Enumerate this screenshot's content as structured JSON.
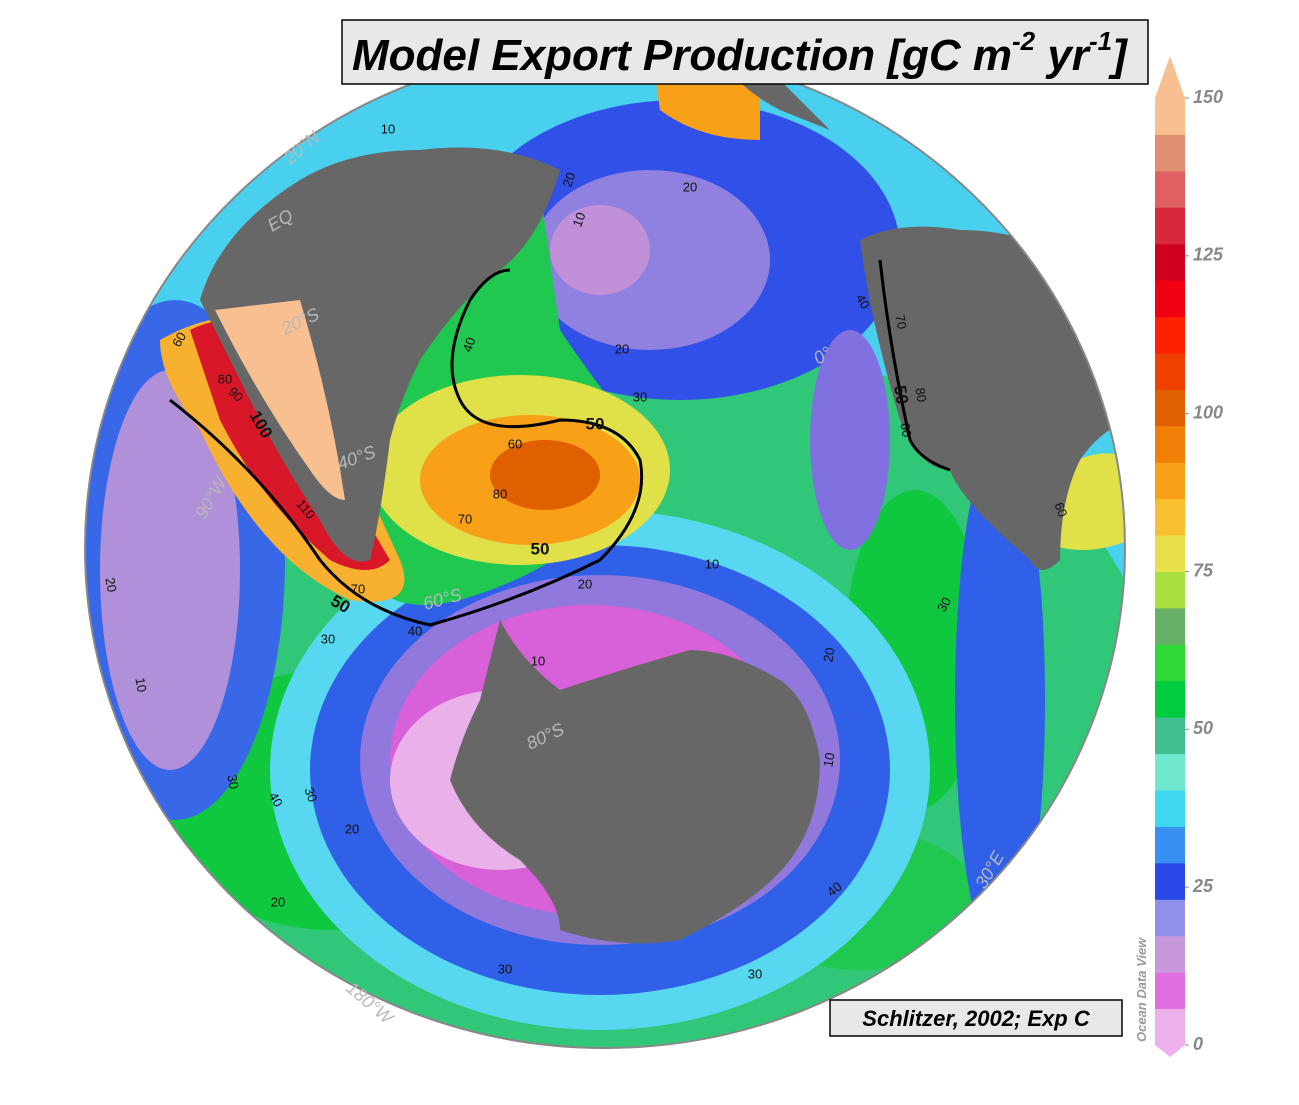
{
  "title": {
    "main": "Model Export Production [gC m",
    "sup1": "-2",
    "mid": " yr",
    "sup2": "-1",
    "end": "]"
  },
  "colorbar": {
    "range": [
      0,
      150
    ],
    "ticks": [
      0,
      25,
      50,
      75,
      100,
      125,
      150
    ],
    "colors": [
      "#eeb0ec",
      "#e070e0",
      "#c898dc",
      "#9090e8",
      "#2848e8",
      "#3890f0",
      "#40d8f0",
      "#70e8d0",
      "#40c090",
      "#00cc40",
      "#30d838",
      "#68b068",
      "#a8e040",
      "#e8e048",
      "#f8c030",
      "#f8a018",
      "#f08008",
      "#e06000",
      "#f04000",
      "#ff2000",
      "#f00010",
      "#d00020",
      "#d82840",
      "#e06060",
      "#e09070",
      "#f8c090"
    ],
    "label": "Ocean Data View"
  },
  "credit": "Schlitzer, 2002; Exp C",
  "graticule_labels": [
    "20°N",
    "EQ",
    "20°S",
    "40°S",
    "60°S",
    "80°S",
    "0°",
    "30°E",
    "90°W",
    "180°W"
  ],
  "contour_labels": [
    "10",
    "20",
    "20",
    "10",
    "20",
    "30",
    "40",
    "50",
    "60",
    "70",
    "80",
    "50",
    "60",
    "70",
    "80",
    "90",
    "100",
    "110",
    "50",
    "40",
    "30",
    "20",
    "10",
    "10",
    "20",
    "30",
    "40",
    "30",
    "20",
    "10",
    "20",
    "30",
    "40",
    "30",
    "20",
    "10",
    "50",
    "70",
    "80",
    "60",
    "40",
    "30",
    "60"
  ]
}
